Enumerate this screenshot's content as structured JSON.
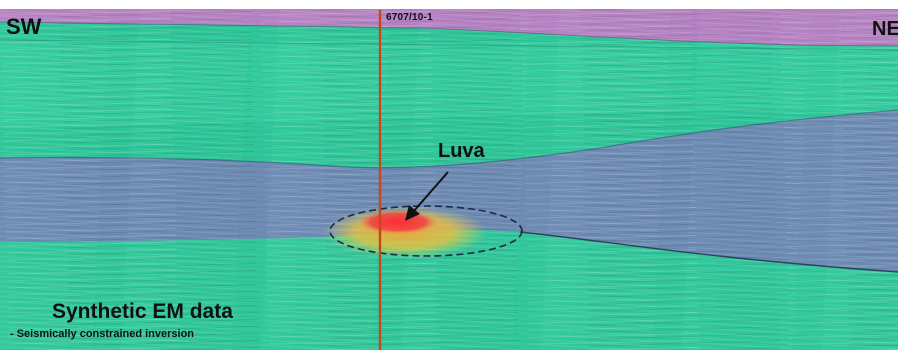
{
  "labels": {
    "left_direction": "SW",
    "right_direction": "NE",
    "well_name": "6707/10-1",
    "target_name": "Luva",
    "caption_title": "Synthetic EM data",
    "caption_subtitle": "- Seismically constrained inversion"
  },
  "colors": {
    "top_layer": "#b684c4",
    "green_layer": "#2fc79a",
    "blue_layer": "#6e8cb4",
    "anomaly_core": "#ef2d3c",
    "anomaly_halo": "#f2c43c",
    "well_line": "#c4471f",
    "outline": "#1e2a4a",
    "text": "#111111"
  }
}
